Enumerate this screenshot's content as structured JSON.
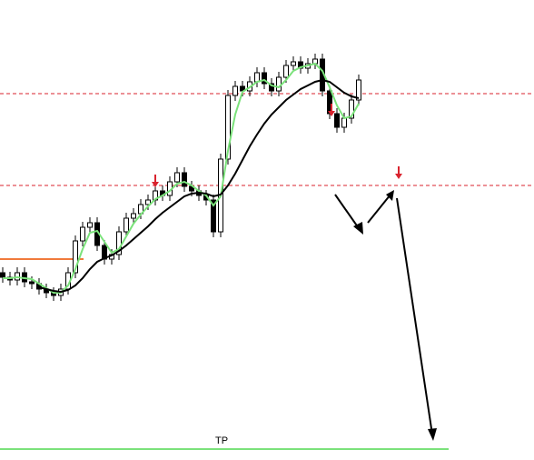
{
  "chart_data": {
    "type": "candlestick",
    "ylim": [
      0,
      506
    ],
    "open": [
      206,
      201,
      198,
      206,
      196,
      194,
      188,
      184,
      181,
      188,
      206,
      241,
      256,
      261,
      236,
      221,
      226,
      251,
      266,
      271,
      281,
      286,
      296,
      291,
      306,
      316,
      301,
      296,
      291,
      286,
      251,
      331,
      401,
      411,
      406,
      416,
      426,
      414,
      406,
      421,
      434,
      438,
      431,
      436,
      441,
      406,
      381,
      366,
      376,
      396
    ],
    "high": [
      212,
      207,
      212,
      212,
      202,
      200,
      194,
      190,
      194,
      212,
      247,
      262,
      267,
      267,
      242,
      232,
      257,
      272,
      277,
      287,
      292,
      302,
      302,
      312,
      322,
      322,
      307,
      302,
      297,
      292,
      337,
      407,
      417,
      417,
      422,
      432,
      432,
      420,
      427,
      440,
      444,
      444,
      442,
      447,
      447,
      412,
      387,
      382,
      402,
      424
    ],
    "low": [
      195,
      192,
      192,
      190,
      188,
      182,
      178,
      175,
      175,
      182,
      200,
      235,
      250,
      230,
      215,
      215,
      220,
      245,
      260,
      265,
      275,
      280,
      285,
      285,
      300,
      295,
      290,
      285,
      280,
      245,
      245,
      325,
      395,
      400,
      400,
      410,
      408,
      400,
      400,
      415,
      428,
      425,
      425,
      430,
      400,
      375,
      360,
      360,
      370,
      390
    ],
    "close": [
      201,
      198,
      206,
      196,
      194,
      188,
      184,
      181,
      188,
      206,
      241,
      256,
      261,
      236,
      221,
      226,
      251,
      266,
      271,
      281,
      286,
      296,
      291,
      306,
      316,
      301,
      296,
      291,
      286,
      251,
      331,
      401,
      411,
      406,
      416,
      426,
      414,
      406,
      421,
      434,
      438,
      431,
      436,
      441,
      406,
      381,
      366,
      376,
      396,
      418
    ],
    "series": [
      {
        "color": "#7be27b",
        "values": [
          200,
          200,
          201,
          200,
          199,
          194,
          189,
          184,
          184,
          192,
          210,
          232,
          250,
          252,
          240,
          228,
          232,
          246,
          260,
          270,
          279,
          287,
          291,
          296,
          304,
          306,
          302,
          296,
          291,
          280,
          290,
          340,
          380,
          405,
          410,
          416,
          418,
          412,
          410,
          418,
          428,
          432,
          434,
          436,
          428,
          410,
          390,
          376,
          378,
          392
        ]
      },
      {
        "color": "#000000",
        "values": [
          null,
          null,
          null,
          null,
          null,
          190,
          188,
          186,
          185,
          187,
          192,
          200,
          210,
          218,
          222,
          225,
          230,
          236,
          243,
          250,
          257,
          265,
          272,
          278,
          284,
          290,
          293,
          294,
          293,
          290,
          292,
          302,
          315,
          330,
          345,
          358,
          370,
          380,
          388,
          396,
          402,
          408,
          412,
          416,
          418,
          416,
          410,
          404,
          400,
          398
        ]
      }
    ],
    "levels": [
      {
        "value": 403,
        "color": "#d9232e"
      },
      {
        "value": 302,
        "color": "#d9232e"
      },
      {
        "value": 221,
        "color": "#f07a3c"
      },
      {
        "value": 12,
        "color": "#7be27b",
        "label": "TP"
      }
    ]
  }
}
